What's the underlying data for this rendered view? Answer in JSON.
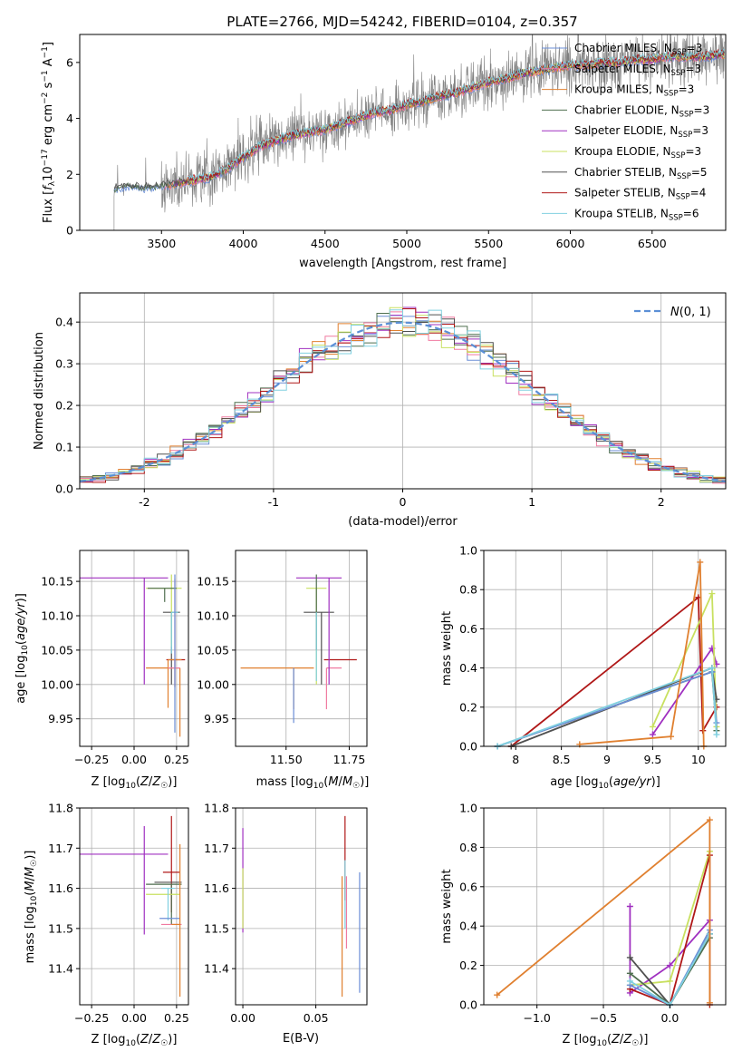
{
  "figure": {
    "title": "PLATE=2766, MJD=54242, FIBERID=0104, z=0.357"
  },
  "colors": {
    "Chabrier MILES": "#6b8ed6",
    "Salpeter MILES": "#f07aa0",
    "Kroupa MILES": "#e08030",
    "Chabrier ELODIE": "#4f6f4f",
    "Salpeter ELODIE": "#a030c0",
    "Kroupa ELODIE": "#c8e060",
    "Chabrier STELIB": "#505050",
    "Salpeter STELIB": "#b01818",
    "Kroupa STELIB": "#80d0e0",
    "gaussian": "#5b8fd6",
    "spectrum": "#808080"
  },
  "chart_data": [
    {
      "id": "spectrum",
      "type": "line",
      "title": "PLATE=2766, MJD=54242, FIBERID=0104, z=0.357",
      "xlabel": "wavelength [Angstrom, rest frame]",
      "ylabel": "Flux [f_λ 10^-17 erg cm^-2 s^-1 A^-1]",
      "xlim": [
        3000,
        6950
      ],
      "ylim": [
        0,
        7
      ],
      "xticks": [
        3500,
        4000,
        4500,
        5000,
        5500,
        6000,
        6500
      ],
      "yticks": [
        0,
        2,
        4,
        6
      ],
      "legend_position": "top-right",
      "continuum": {
        "x": [
          3210,
          3300,
          3400,
          3500,
          3600,
          3700,
          3800,
          3900,
          4000,
          4100,
          4200,
          4300,
          4400,
          4500,
          4600,
          4700,
          4800,
          4900,
          5000,
          5100,
          5200,
          5300,
          5400,
          5500,
          5600,
          5700,
          5800,
          5900,
          6000,
          6100,
          6200,
          6300,
          6400,
          6500,
          6600,
          6700,
          6800,
          6950
        ],
        "y": [
          1.5,
          1.6,
          1.55,
          1.6,
          1.7,
          1.8,
          1.9,
          2.2,
          2.6,
          3.0,
          3.2,
          3.4,
          3.5,
          3.6,
          3.8,
          4.0,
          4.2,
          4.3,
          4.5,
          4.6,
          4.8,
          4.9,
          5.1,
          5.3,
          5.4,
          5.6,
          5.7,
          5.8,
          5.9,
          5.9,
          6.0,
          6.0,
          6.1,
          6.1,
          6.2,
          6.2,
          6.2,
          6.3
        ]
      },
      "legend": [
        {
          "label": "Chabrier MILES, N",
          "sub": "SSP",
          "suffix": "=3",
          "color": "#6b8ed6"
        },
        {
          "label": "Salpeter MILES, N",
          "sub": "SSP",
          "suffix": "=3",
          "color": "#f07aa0"
        },
        {
          "label": "Kroupa MILES, N",
          "sub": "SSP",
          "suffix": "=3",
          "color": "#e08030"
        },
        {
          "label": "Chabrier ELODIE, N",
          "sub": "SSP",
          "suffix": "=3",
          "color": "#4f6f4f"
        },
        {
          "label": "Salpeter ELODIE, N",
          "sub": "SSP",
          "suffix": "=3",
          "color": "#a030c0"
        },
        {
          "label": "Kroupa ELODIE, N",
          "sub": "SSP",
          "suffix": "=3",
          "color": "#c8e060"
        },
        {
          "label": "Chabrier STELIB, N",
          "sub": "SSP",
          "suffix": "=5",
          "color": "#505050"
        },
        {
          "label": "Salpeter STELIB, N",
          "sub": "SSP",
          "suffix": "=4",
          "color": "#b01818"
        },
        {
          "label": "Kroupa STELIB, N",
          "sub": "SSP",
          "suffix": "=6",
          "color": "#80d0e0"
        }
      ]
    },
    {
      "id": "residuals",
      "type": "histogram",
      "xlabel": "(data-model)/error",
      "ylabel": "Normed distribution",
      "xlim": [
        -2.5,
        2.5
      ],
      "ylim": [
        0,
        0.47
      ],
      "xticks": [
        -2,
        -1,
        0,
        1,
        2
      ],
      "yticks": [
        0.0,
        0.1,
        0.2,
        0.3,
        0.4
      ],
      "legend_position": "top-right",
      "gaussian_label": "N(0,1)",
      "bin_width": 0.1
    },
    {
      "id": "age_vs_Z",
      "type": "errorbar",
      "xlabel": "Z [log10(Z/Z☉)]",
      "ylabel": "age [log10(age/yr)]",
      "xlim": [
        -0.32,
        0.32
      ],
      "ylim": [
        9.91,
        10.195
      ],
      "xticks": [
        -0.25,
        0.0,
        0.25
      ],
      "xticklabels": [
        "−0.25",
        "0.00",
        "0.25"
      ],
      "yticks": [
        9.95,
        10.0,
        10.05,
        10.1,
        10.15
      ],
      "points": [
        {
          "x": 0.22,
          "xerr": [
            0.05,
            0.05
          ],
          "y": 10.105,
          "yerr": [
            0.105,
            0.0
          ],
          "color": "#505050"
        },
        {
          "x": 0.24,
          "xerr": [
            0.05,
            0.06
          ],
          "y": 10.036,
          "yerr": [
            0.04,
            0.0
          ],
          "color": "#b01818"
        },
        {
          "x": 0.2,
          "xerr": [
            0.0,
            0.08
          ],
          "y": 10.036,
          "yerr": [
            0.07,
            0.0
          ],
          "color": "#e08030"
        },
        {
          "x": 0.27,
          "xerr": [
            0.2,
            0.0
          ],
          "y": 10.024,
          "yerr": [
            0.1,
            0.0
          ],
          "color": "#e08030"
        },
        {
          "x": 0.24,
          "xerr": [
            0.04,
            0.03
          ],
          "y": 10.024,
          "yerr": [
            0.0,
            0.13
          ],
          "color": "#f07aa0"
        },
        {
          "x": 0.06,
          "xerr": [
            0.38,
            0.14
          ],
          "y": 10.155,
          "yerr": [
            0.155,
            0.0
          ],
          "color": "#a030c0"
        },
        {
          "x": 0.22,
          "xerr": [
            0.15,
            0.06
          ],
          "y": 10.14,
          "yerr": [
            0.085,
            0.02
          ],
          "color": "#c8e060"
        },
        {
          "x": 0.18,
          "xerr": [
            0.1,
            0.07
          ],
          "y": 10.14,
          "yerr": [
            0.02,
            0.0
          ],
          "color": "#4f6f4f"
        },
        {
          "x": 0.22,
          "xerr": [
            0.0,
            0.04
          ],
          "y": 10.105,
          "yerr": [
            0.06,
            0.0
          ],
          "color": "#80d0e0"
        },
        {
          "x": 0.24,
          "xerr": [
            0.0,
            0.0
          ],
          "y": 10.14,
          "yerr": [
            0.21,
            0.02
          ],
          "color": "#6b8ed6"
        }
      ]
    },
    {
      "id": "age_vs_mass",
      "type": "errorbar",
      "xlabel": "mass [log10(M/M☉)]",
      "xlim": [
        11.3,
        11.82
      ],
      "ylim": [
        9.91,
        10.195
      ],
      "xticks": [
        11.5,
        11.75
      ],
      "xticklabels": [
        "11.50",
        "11.75"
      ],
      "yticks": [
        9.95,
        10.0,
        10.05,
        10.1,
        10.15
      ],
      "points": [
        {
          "x": 11.64,
          "xerr": [
            0.07,
            0.05
          ],
          "y": 10.105,
          "yerr": [
            0.105,
            0.0
          ],
          "color": "#505050"
        },
        {
          "x": 11.65,
          "xerr": [
            0.0,
            0.13
          ],
          "y": 10.036,
          "yerr": [
            0.0,
            0.0
          ],
          "color": "#b01818"
        },
        {
          "x": 11.53,
          "xerr": [
            0.21,
            0.08
          ],
          "y": 10.024,
          "yerr": [
            0.06,
            0.0
          ],
          "color": "#e08030"
        },
        {
          "x": 11.66,
          "xerr": [
            0.0,
            0.06
          ],
          "y": 10.024,
          "yerr": [
            0.06,
            0.0
          ],
          "color": "#f07aa0"
        },
        {
          "x": 11.67,
          "xerr": [
            0.13,
            0.05
          ],
          "y": 10.155,
          "yerr": [
            0.155,
            0.0
          ],
          "color": "#a030c0"
        },
        {
          "x": 11.62,
          "xerr": [
            0.04,
            0.04
          ],
          "y": 10.14,
          "yerr": [
            0.14,
            0.0
          ],
          "color": "#c8e060"
        },
        {
          "x": 11.62,
          "xerr": [
            0.0,
            0.0
          ],
          "y": 10.14,
          "yerr": [
            0.09,
            0.02
          ],
          "color": "#4f6f4f"
        },
        {
          "x": 11.62,
          "xerr": [
            0.0,
            0.0
          ],
          "y": 10.105,
          "yerr": [
            0.1,
            0.0
          ],
          "color": "#80d0e0"
        },
        {
          "x": 11.53,
          "xerr": [
            0.0,
            0.0
          ],
          "y": 10.024,
          "yerr": [
            0.08,
            0.0
          ],
          "color": "#6b8ed6"
        }
      ]
    },
    {
      "id": "weight_vs_age",
      "type": "line",
      "xlabel": "age [log10(age/yr)]",
      "ylabel": "mass weight",
      "xlim": [
        7.65,
        10.3
      ],
      "ylim": [
        0,
        1.0
      ],
      "xticks": [
        8.0,
        8.5,
        9.0,
        9.5,
        10.0
      ],
      "yticks": [
        0.0,
        0.2,
        0.4,
        0.6,
        0.8,
        1.0
      ],
      "series": [
        {
          "color": "#b01818",
          "x": [
            7.95,
            10.0,
            10.05,
            10.2
          ],
          "y": [
            0.0,
            0.76,
            0.08,
            0.2
          ]
        },
        {
          "color": "#a030c0",
          "x": [
            9.5,
            10.15,
            10.2
          ],
          "y": [
            0.06,
            0.5,
            0.42
          ]
        },
        {
          "color": "#c8e060",
          "x": [
            9.5,
            10.15,
            10.2
          ],
          "y": [
            0.1,
            0.78,
            0.1
          ]
        },
        {
          "color": "#505050",
          "x": [
            7.95,
            10.15,
            10.2
          ],
          "y": [
            0.0,
            0.4,
            0.24
          ]
        },
        {
          "color": "#4f6f4f",
          "x": [
            7.8,
            10.15,
            10.2
          ],
          "y": [
            0.0,
            0.38,
            0.08
          ]
        },
        {
          "color": "#6b8ed6",
          "x": [
            7.8,
            10.15,
            10.2
          ],
          "y": [
            0.0,
            0.38,
            0.12
          ]
        },
        {
          "color": "#80d0e0",
          "x": [
            7.8,
            10.15,
            10.2
          ],
          "y": [
            0.0,
            0.4,
            0.06
          ]
        },
        {
          "color": "#e08030",
          "x": [
            8.7,
            9.7,
            10.02,
            10.06
          ],
          "y": [
            0.01,
            0.05,
            0.94,
            0.0
          ]
        }
      ]
    },
    {
      "id": "mass_vs_Z",
      "type": "errorbar",
      "xlabel": "Z [log10(Z/Z☉)]",
      "ylabel": "mass [log10(M/M☉)]",
      "xlim": [
        -0.32,
        0.32
      ],
      "ylim": [
        11.31,
        11.8
      ],
      "xticks": [
        -0.25,
        0.0,
        0.25
      ],
      "xticklabels": [
        "−0.25",
        "0.00",
        "0.25"
      ],
      "yticks": [
        11.4,
        11.5,
        11.6,
        11.7,
        11.8
      ],
      "points": [
        {
          "x": 0.06,
          "xerr": [
            0.38,
            0.14
          ],
          "y": 11.685,
          "yerr": [
            0.2,
            0.07
          ],
          "color": "#a030c0"
        },
        {
          "x": 0.22,
          "xerr": [
            0.05,
            0.05
          ],
          "y": 11.64,
          "yerr": [
            0.1,
            0.14
          ],
          "color": "#b01818"
        },
        {
          "x": 0.22,
          "xerr": [
            0.1,
            0.06
          ],
          "y": 11.615,
          "yerr": [
            0.0,
            0.0
          ],
          "color": "#505050"
        },
        {
          "x": 0.22,
          "xerr": [
            0.15,
            0.06
          ],
          "y": 11.61,
          "yerr": [
            0.1,
            0.0
          ],
          "color": "#4f6f4f"
        },
        {
          "x": 0.22,
          "xerr": [
            0.15,
            0.05
          ],
          "y": 11.585,
          "yerr": [
            0.0,
            0.0
          ],
          "color": "#c8e060"
        },
        {
          "x": 0.2,
          "xerr": [
            0.04,
            0.04
          ],
          "y": 11.6,
          "yerr": [
            0.08,
            0.0
          ],
          "color": "#80d0e0"
        },
        {
          "x": 0.24,
          "xerr": [
            0.09,
            0.03
          ],
          "y": 11.525,
          "yerr": [
            0.0,
            0.0
          ],
          "color": "#6b8ed6"
        },
        {
          "x": 0.25,
          "xerr": [
            0.09,
            0.03
          ],
          "y": 11.51,
          "yerr": [
            0.0,
            0.0
          ],
          "color": "#f07aa0"
        },
        {
          "x": 0.27,
          "xerr": [
            0.05,
            0.0
          ],
          "y": 11.51,
          "yerr": [
            0.18,
            0.2
          ],
          "color": "#e08030"
        }
      ]
    },
    {
      "id": "mass_vs_ebv",
      "type": "errorbar",
      "xlabel": "E(B-V)",
      "xlim": [
        -0.005,
        0.085
      ],
      "ylim": [
        11.31,
        11.8
      ],
      "xticks": [
        0.0,
        0.05
      ],
      "xticklabels": [
        "0.00",
        "0.05"
      ],
      "yticks": [
        11.4,
        11.5,
        11.6,
        11.7,
        11.8
      ],
      "points": [
        {
          "x": 0.0,
          "xerr": [
            0.0,
            0.0
          ],
          "y": 11.65,
          "yerr": [
            0.16,
            0.1
          ],
          "color": "#a030c0"
        },
        {
          "x": 0.0,
          "xerr": [
            0.0,
            0.0
          ],
          "y": 11.55,
          "yerr": [
            0.05,
            0.1
          ],
          "color": "#c8e060"
        },
        {
          "x": 0.07,
          "xerr": [
            0.0,
            0.0
          ],
          "y": 11.67,
          "yerr": [
            0.1,
            0.11
          ],
          "color": "#b01818"
        },
        {
          "x": 0.07,
          "xerr": [
            0.0,
            0.0
          ],
          "y": 11.6,
          "yerr": [
            0.1,
            0.07
          ],
          "color": "#80d0e0"
        },
        {
          "x": 0.068,
          "xerr": [
            0.0,
            0.0
          ],
          "y": 11.47,
          "yerr": [
            0.14,
            0.16
          ],
          "color": "#e08030"
        },
        {
          "x": 0.071,
          "xerr": [
            0.0,
            0.0
          ],
          "y": 11.55,
          "yerr": [
            0.1,
            0.08
          ],
          "color": "#f07aa0"
        },
        {
          "x": 0.08,
          "xerr": [
            0.0,
            0.0
          ],
          "y": 11.5,
          "yerr": [
            0.16,
            0.14
          ],
          "color": "#6b8ed6"
        }
      ]
    },
    {
      "id": "weight_vs_Z",
      "type": "line",
      "xlabel": "Z [log10(Z/Z☉)]",
      "ylabel": "mass weight",
      "xlim": [
        -1.4,
        0.42
      ],
      "ylim": [
        0,
        1.0
      ],
      "xticks": [
        -1.0,
        -0.5,
        0.0
      ],
      "xticklabels": [
        "−1.0",
        "−0.5",
        "0.0"
      ],
      "yticks": [
        0.0,
        0.2,
        0.4,
        0.6,
        0.8,
        1.0
      ],
      "series": [
        {
          "color": "#a030c0",
          "x": [
            -0.3,
            -0.3,
            0.0,
            0.3
          ],
          "y": [
            0.5,
            0.06,
            0.2,
            0.43
          ]
        },
        {
          "color": "#c8e060",
          "x": [
            -0.3,
            0.0,
            0.3
          ],
          "y": [
            0.1,
            0.12,
            0.78
          ]
        },
        {
          "color": "#b01818",
          "x": [
            -0.3,
            0.0,
            0.3,
            0.3
          ],
          "y": [
            0.08,
            0.0,
            0.76,
            0.0
          ]
        },
        {
          "color": "#505050",
          "x": [
            -0.3,
            0.0,
            0.3
          ],
          "y": [
            0.24,
            0.0,
            0.36
          ]
        },
        {
          "color": "#4f6f4f",
          "x": [
            -0.3,
            0.0,
            0.3
          ],
          "y": [
            0.16,
            0.0,
            0.34
          ]
        },
        {
          "color": "#6b8ed6",
          "x": [
            -0.3,
            0.0,
            0.3
          ],
          "y": [
            0.1,
            0.0,
            0.38
          ]
        },
        {
          "color": "#80d0e0",
          "x": [
            -0.3,
            0.0,
            0.3
          ],
          "y": [
            0.12,
            0.0,
            0.36
          ]
        },
        {
          "color": "#e08030",
          "x": [
            -1.3,
            0.3,
            0.3
          ],
          "y": [
            0.05,
            0.94,
            0.01
          ]
        }
      ]
    }
  ]
}
